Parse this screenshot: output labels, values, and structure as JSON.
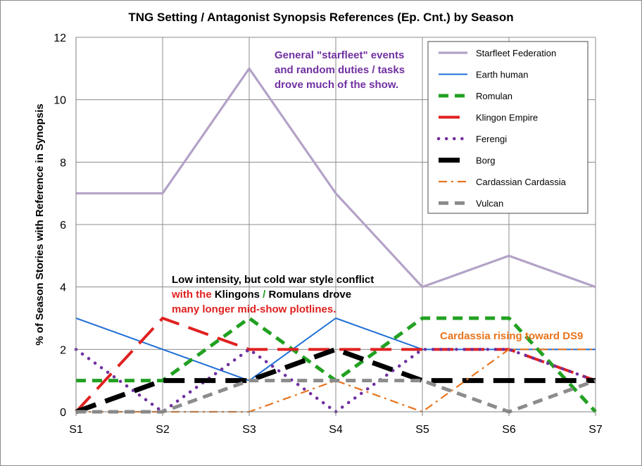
{
  "chart_data": {
    "type": "line",
    "title": "TNG Setting / Antagonist Synopsis References (Ep. Cnt.) by Season",
    "xlabel": "",
    "ylabel": "% of Season Stories with Reference in Synopsis",
    "categories": [
      "S1",
      "S2",
      "S3",
      "S4",
      "S5",
      "S6",
      "S7"
    ],
    "ylim": [
      0,
      12
    ],
    "yticks": [
      0,
      2,
      4,
      6,
      8,
      10,
      12
    ],
    "grid": true,
    "legend_position": "top-right",
    "series": [
      {
        "name": "Starfleet  Federation",
        "values": [
          7,
          7,
          11,
          7,
          4,
          5,
          4
        ],
        "color": "#b3a2c7",
        "style": "solid"
      },
      {
        "name": "Earth  human",
        "values": [
          3,
          2,
          1,
          3,
          2,
          2,
          2
        ],
        "color": "#1f6fd6",
        "style": "solid"
      },
      {
        "name": "Romulan",
        "values": [
          1,
          1,
          3,
          1,
          3,
          3,
          0
        ],
        "color": "#22a022",
        "style": "dash"
      },
      {
        "name": "Klingon  Empire",
        "values": [
          0,
          3,
          2,
          2,
          2,
          2,
          1
        ],
        "color": "#e02020",
        "style": "longdash"
      },
      {
        "name": "Ferengi",
        "values": [
          2,
          0,
          2,
          0,
          2,
          2,
          1
        ],
        "color": "#7030a0",
        "style": "dot"
      },
      {
        "name": "Borg",
        "values": [
          0,
          1,
          1,
          2,
          1,
          1,
          1
        ],
        "color": "#000000",
        "style": "longdash"
      },
      {
        "name": "Cardassian  Cardassia",
        "values": [
          0,
          0,
          0,
          1,
          0,
          2,
          2
        ],
        "color": "#e8741c",
        "style": "dashdot"
      },
      {
        "name": "Vulcan",
        "values": [
          0,
          0,
          1,
          1,
          1,
          0,
          1
        ],
        "color": "#8c8c8c",
        "style": "dash"
      }
    ],
    "annotations": [
      {
        "id": "starfleet",
        "lines": [
          [
            "General \"starfleet\" events"
          ],
          [
            "and random duties / tasks"
          ],
          [
            "drove much of the show."
          ]
        ],
        "color": "#7030a0"
      },
      {
        "id": "coldwar",
        "lines": [
          [
            "Low intensity, but cold war style conflict"
          ],
          [
            "with the ",
            "Klingons",
            " / ",
            "Romulans",
            " drove"
          ],
          [
            "many longer mid-show plotlines."
          ]
        ],
        "color": "#000000",
        "span_colors": [
          "#000000",
          "#e02020",
          "#000000",
          "#22a022",
          "#000000"
        ]
      },
      {
        "id": "cardassia",
        "lines": [
          [
            "Cardassia rising toward DS9"
          ]
        ],
        "color": "#e8741c"
      }
    ]
  }
}
